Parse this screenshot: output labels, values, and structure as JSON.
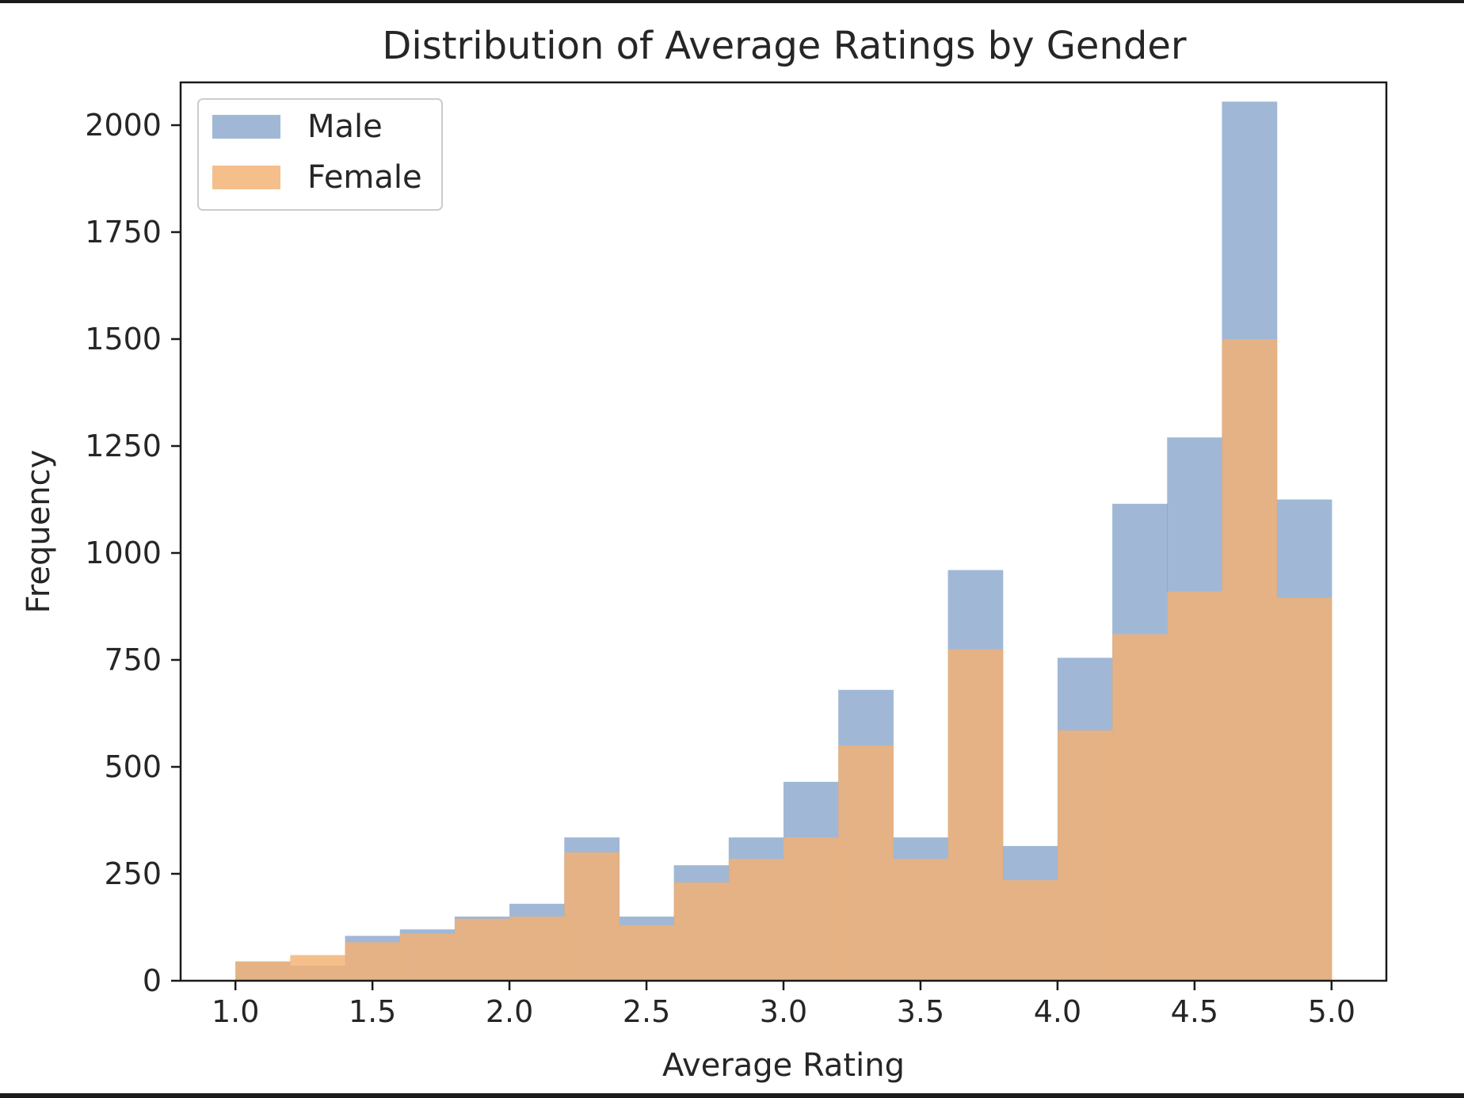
{
  "chart_data": {
    "type": "bar",
    "title": "Distribution of Average Ratings by Gender",
    "xlabel": "Average Rating",
    "ylabel": "Frequency",
    "xlim": [
      0.8,
      5.2
    ],
    "ylim": [
      0,
      2100
    ],
    "xticks": [
      1.0,
      1.5,
      2.0,
      2.5,
      3.0,
      3.5,
      4.0,
      4.5,
      5.0
    ],
    "xtick_labels": [
      "1.0",
      "1.5",
      "2.0",
      "2.5",
      "3.0",
      "3.5",
      "4.0",
      "4.5",
      "5.0"
    ],
    "yticks": [
      0,
      250,
      500,
      750,
      1000,
      1250,
      1500,
      1750,
      2000
    ],
    "ytick_labels": [
      "0",
      "250",
      "500",
      "750",
      "1000",
      "1250",
      "1500",
      "1750",
      "2000"
    ],
    "bin_edges": [
      1.0,
      1.2,
      1.4,
      1.6,
      1.8,
      2.0,
      2.2,
      2.4,
      2.6,
      2.8,
      3.0,
      3.2,
      3.4,
      3.6,
      3.8,
      4.0,
      4.2,
      4.4,
      4.6,
      4.8,
      5.0
    ],
    "legend_position": "top-left",
    "grid": false,
    "series": [
      {
        "name": "Male",
        "color": "#7396c3",
        "opacity": 0.68,
        "values": [
          45,
          35,
          105,
          120,
          150,
          180,
          335,
          150,
          270,
          335,
          465,
          680,
          335,
          960,
          315,
          755,
          1115,
          1270,
          2055,
          1125
        ]
      },
      {
        "name": "Female",
        "color": "#f3b173",
        "opacity": 0.82,
        "values": [
          45,
          60,
          90,
          110,
          145,
          150,
          300,
          130,
          230,
          285,
          335,
          550,
          285,
          775,
          235,
          585,
          810,
          910,
          1500,
          895
        ]
      }
    ]
  }
}
